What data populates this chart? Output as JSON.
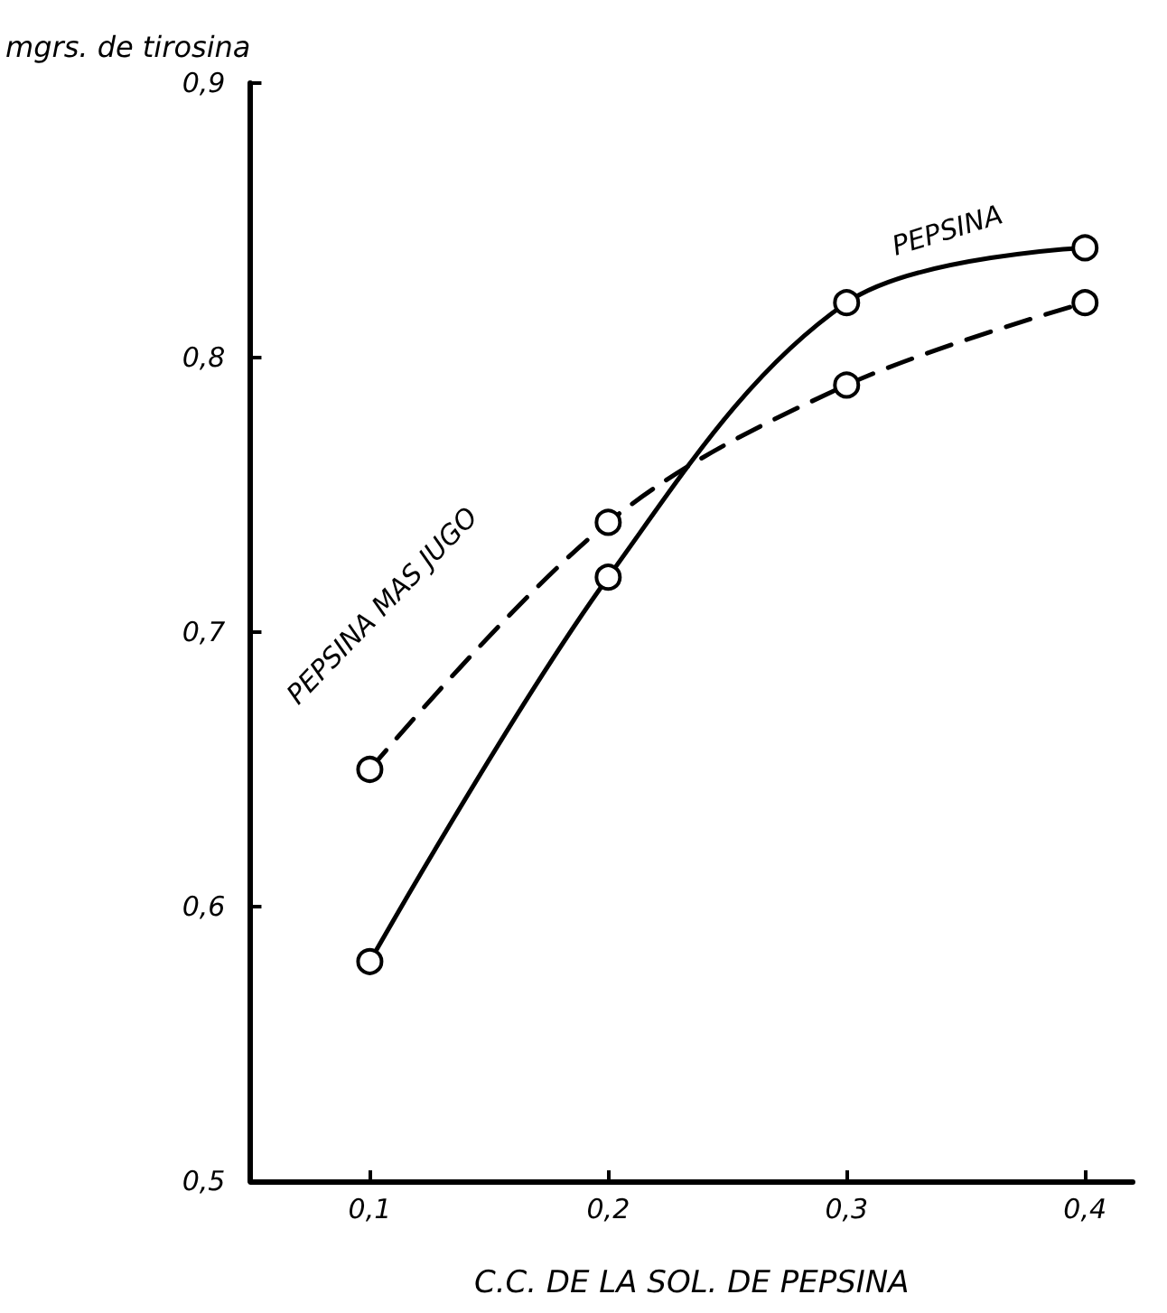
{
  "chart_data": {
    "type": "line",
    "xlabel": "C.C. DE LA SOL. DE PEPSINA",
    "ylabel": "mgrs. de tirosina",
    "x": [
      0.1,
      0.2,
      0.3,
      0.4
    ],
    "series": [
      {
        "name": "PEPSINA",
        "color": "#000000",
        "line_style": "solid",
        "values": [
          0.58,
          0.72,
          0.82,
          0.84
        ]
      },
      {
        "name": "PEPSINA MAS JUGO",
        "color": "#000000",
        "line_style": "dashed",
        "values": [
          0.65,
          0.74,
          0.79,
          0.82
        ]
      }
    ],
    "xlim": [
      0.05,
      0.42
    ],
    "ylim": [
      0.5,
      0.9
    ],
    "xticks": [
      {
        "value": 0.1,
        "label": "0,1"
      },
      {
        "value": 0.2,
        "label": "0,2"
      },
      {
        "value": 0.3,
        "label": "0,3"
      },
      {
        "value": 0.4,
        "label": "0,4"
      }
    ],
    "yticks": [
      {
        "value": 0.5,
        "label": "0,5"
      },
      {
        "value": 0.6,
        "label": "0,6"
      },
      {
        "value": 0.7,
        "label": "0,7"
      },
      {
        "value": 0.8,
        "label": "0,8"
      },
      {
        "value": 0.9,
        "label": "0,9"
      }
    ],
    "marker": "circle",
    "grid": false,
    "legend": false
  }
}
